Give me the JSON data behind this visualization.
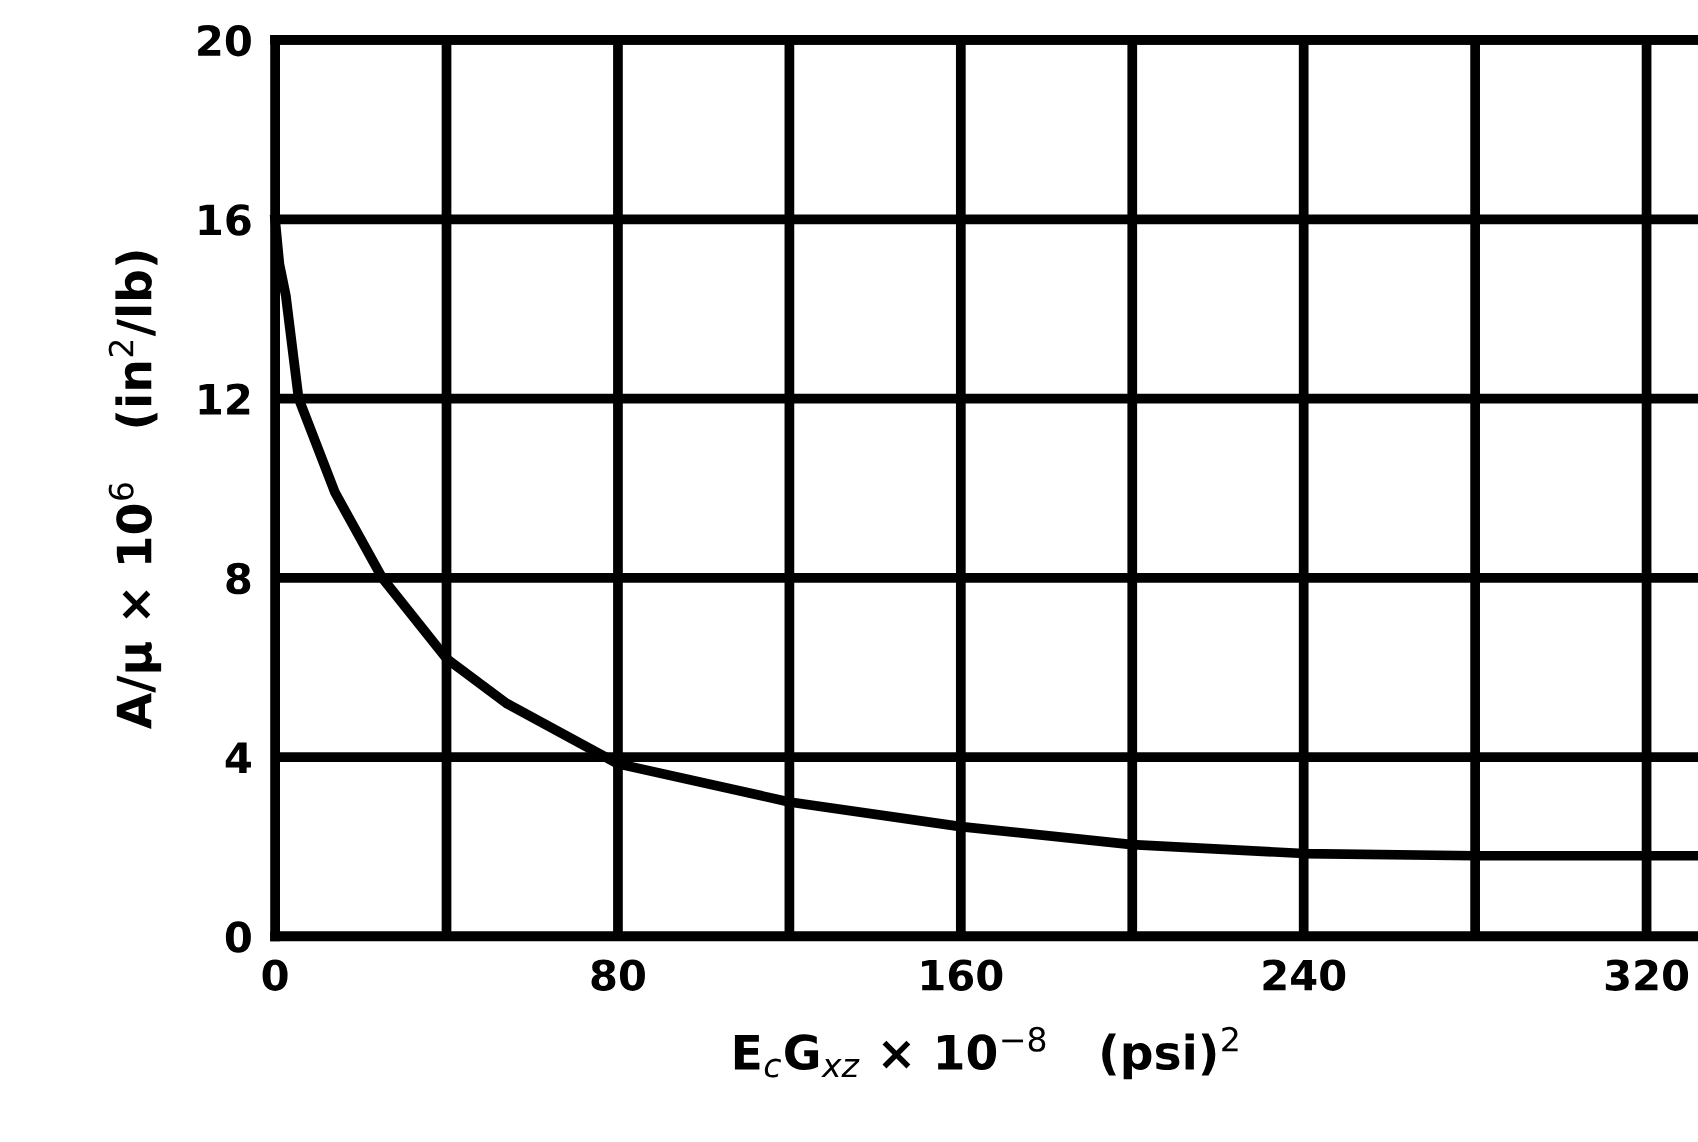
{
  "chart_data": {
    "type": "line",
    "xlabel": "E$_{c}$G$_{xz}$ × 10$^{−8}$   (psi)$^{2}$",
    "ylabel": "A/μ × 10$^{6}$   (in$^{2}$/lb)",
    "x": [
      0,
      1,
      2.5,
      5.5,
      14,
      25,
      40,
      54,
      80,
      120,
      160,
      200,
      240,
      280,
      320,
      332
    ],
    "series": [
      {
        "color": "#000000",
        "values": [
          16,
          15,
          14.3,
          12,
          9.9,
          8,
          6.2,
          5.2,
          3.85,
          3.0,
          2.45,
          2.05,
          1.85,
          1.8,
          1.8,
          1.8
        ]
      }
    ],
    "xlim": [
      0,
      332
    ],
    "ylim": [
      0,
      20
    ],
    "xticks": [
      0,
      {
        "value": 40,
        "label": null
      },
      80,
      {
        "value": 120,
        "label": null
      },
      160,
      {
        "value": 200,
        "label": null
      },
      240,
      {
        "value": 280,
        "label": null
      },
      320
    ],
    "yticks": [
      0,
      4,
      8,
      12,
      16,
      20
    ],
    "grid": true,
    "marker": "none",
    "line_style": "solid"
  }
}
